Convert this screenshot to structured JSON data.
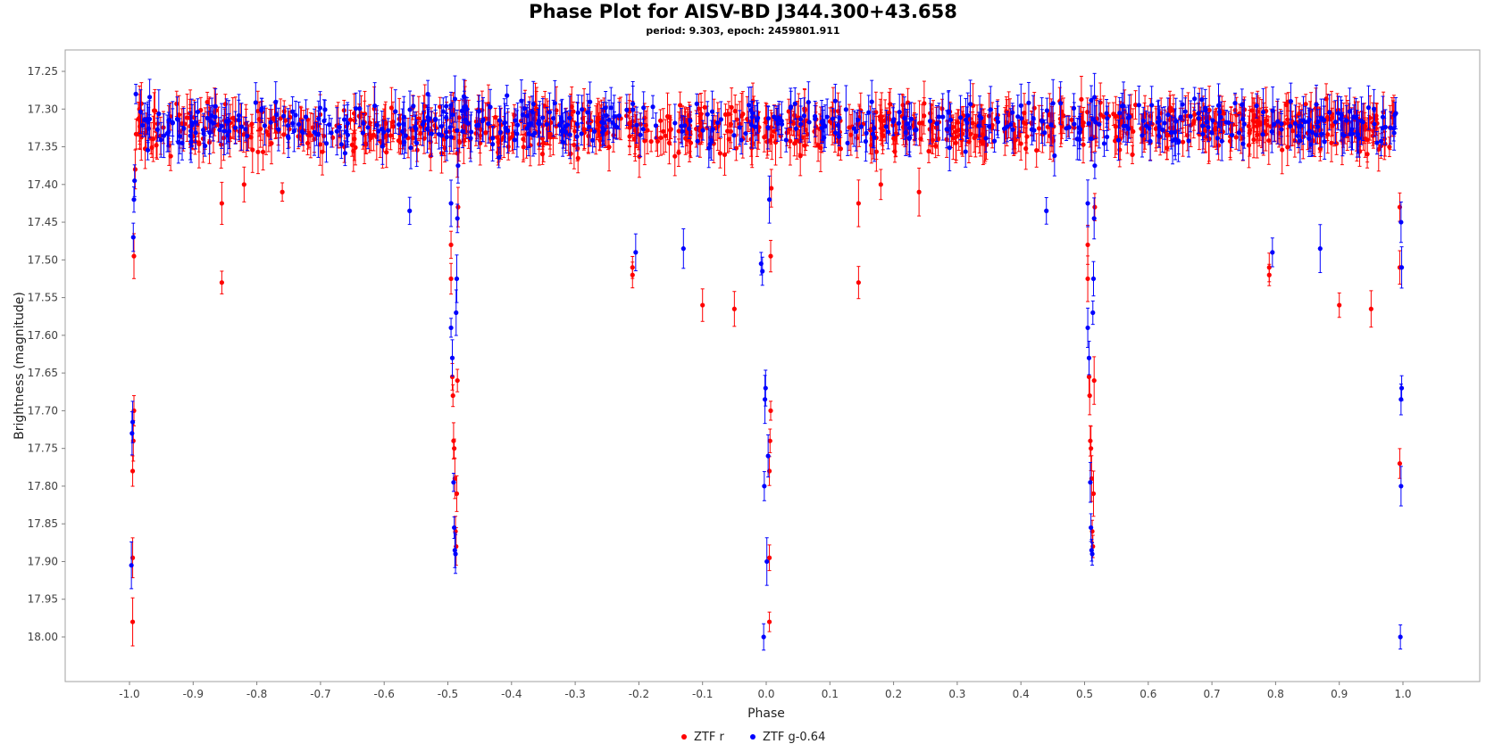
{
  "chart_data": {
    "type": "scatter",
    "title": "Phase Plot for AISV-BD J344.300+43.658",
    "subtitle": "period: 9.303, epoch: 2459801.911",
    "xlabel": "Phase",
    "ylabel": "Brightness (magnitude)",
    "xlim": [
      -1.1,
      1.1
    ],
    "ylim": [
      18.05,
      17.21
    ],
    "y_inverted": true,
    "x_ticks": [
      "-1.0",
      "-0.9",
      "-0.8",
      "-0.7",
      "-0.6",
      "-0.5",
      "-0.4",
      "-0.3",
      "-0.2",
      "-0.1",
      "0.0",
      "0.1",
      "0.2",
      "0.3",
      "0.4",
      "0.5",
      "0.6",
      "0.7",
      "0.8",
      "0.9",
      "1.0"
    ],
    "y_ticks": [
      "17.25",
      "17.30",
      "17.35",
      "17.40",
      "17.45",
      "17.50",
      "17.55",
      "17.60",
      "17.65",
      "17.70",
      "17.75",
      "17.80",
      "17.85",
      "17.90",
      "17.95",
      "18.00"
    ],
    "grid": false,
    "legend_position": "bottom-center",
    "series": [
      {
        "name": "ZTF r",
        "color": "#ff0000",
        "points": [
          [
            -0.995,
            17.98
          ],
          [
            -0.995,
            17.895
          ],
          [
            -0.995,
            17.78
          ],
          [
            -0.994,
            17.74
          ],
          [
            -0.993,
            17.7
          ],
          [
            -0.993,
            17.495
          ],
          [
            -0.991,
            17.38
          ],
          [
            -0.855,
            17.425
          ],
          [
            -0.855,
            17.53
          ],
          [
            -0.82,
            17.4
          ],
          [
            -0.76,
            17.41
          ],
          [
            -0.495,
            17.48
          ],
          [
            -0.495,
            17.525
          ],
          [
            -0.493,
            17.655
          ],
          [
            -0.492,
            17.68
          ],
          [
            -0.491,
            17.74
          ],
          [
            -0.49,
            17.75
          ],
          [
            -0.489,
            17.79
          ],
          [
            -0.488,
            17.86
          ],
          [
            -0.487,
            17.88
          ],
          [
            -0.486,
            17.81
          ],
          [
            -0.485,
            17.66
          ],
          [
            -0.484,
            17.43
          ],
          [
            -0.21,
            17.51
          ],
          [
            -0.21,
            17.52
          ],
          [
            -0.1,
            17.56
          ],
          [
            -0.05,
            17.565
          ],
          [
            0.005,
            17.98
          ],
          [
            0.005,
            17.895
          ],
          [
            0.005,
            17.78
          ],
          [
            0.006,
            17.74
          ],
          [
            0.007,
            17.7
          ],
          [
            0.007,
            17.495
          ],
          [
            0.008,
            17.405
          ],
          [
            0.145,
            17.425
          ],
          [
            0.145,
            17.53
          ],
          [
            0.18,
            17.4
          ],
          [
            0.24,
            17.41
          ],
          [
            0.505,
            17.48
          ],
          [
            0.505,
            17.525
          ],
          [
            0.507,
            17.655
          ],
          [
            0.508,
            17.68
          ],
          [
            0.509,
            17.74
          ],
          [
            0.51,
            17.75
          ],
          [
            0.511,
            17.79
          ],
          [
            0.512,
            17.86
          ],
          [
            0.513,
            17.88
          ],
          [
            0.514,
            17.81
          ],
          [
            0.515,
            17.66
          ],
          [
            0.516,
            17.43
          ],
          [
            0.79,
            17.51
          ],
          [
            0.79,
            17.52
          ],
          [
            0.9,
            17.56
          ],
          [
            0.95,
            17.565
          ],
          [
            0.995,
            17.77
          ],
          [
            0.995,
            17.51
          ],
          [
            0.995,
            17.43
          ]
        ],
        "band": {
          "center": 17.325,
          "spread": 0.04,
          "count": 900,
          "x_range": [
            -0.99,
            0.99
          ]
        }
      },
      {
        "name": "ZTF g-0.64",
        "color": "#0000ff",
        "points": [
          [
            -0.997,
            17.905
          ],
          [
            -0.996,
            17.73
          ],
          [
            -0.995,
            17.715
          ],
          [
            -0.994,
            17.47
          ],
          [
            -0.993,
            17.42
          ],
          [
            -0.992,
            17.395
          ],
          [
            -0.99,
            17.28
          ],
          [
            -0.56,
            17.435
          ],
          [
            -0.495,
            17.59
          ],
          [
            -0.495,
            17.425
          ],
          [
            -0.493,
            17.63
          ],
          [
            -0.491,
            17.795
          ],
          [
            -0.49,
            17.855
          ],
          [
            -0.489,
            17.885
          ],
          [
            -0.488,
            17.89
          ],
          [
            -0.487,
            17.57
          ],
          [
            -0.486,
            17.525
          ],
          [
            -0.485,
            17.445
          ],
          [
            -0.484,
            17.375
          ],
          [
            -0.205,
            17.49
          ],
          [
            -0.13,
            17.485
          ],
          [
            -0.008,
            17.505
          ],
          [
            -0.006,
            17.515
          ],
          [
            -0.004,
            18.0
          ],
          [
            -0.003,
            17.8
          ],
          [
            -0.002,
            17.685
          ],
          [
            -0.001,
            17.67
          ],
          [
            0.001,
            17.9
          ],
          [
            0.003,
            17.76
          ],
          [
            0.005,
            17.42
          ],
          [
            0.44,
            17.435
          ],
          [
            0.505,
            17.59
          ],
          [
            0.505,
            17.425
          ],
          [
            0.507,
            17.63
          ],
          [
            0.509,
            17.795
          ],
          [
            0.51,
            17.855
          ],
          [
            0.511,
            17.885
          ],
          [
            0.512,
            17.89
          ],
          [
            0.513,
            17.57
          ],
          [
            0.514,
            17.525
          ],
          [
            0.515,
            17.445
          ],
          [
            0.516,
            17.375
          ],
          [
            0.795,
            17.49
          ],
          [
            0.87,
            17.485
          ],
          [
            0.996,
            18.0
          ],
          [
            0.997,
            17.8
          ],
          [
            0.997,
            17.685
          ],
          [
            0.998,
            17.67
          ],
          [
            0.998,
            17.51
          ],
          [
            0.997,
            17.45
          ]
        ],
        "band": {
          "center": 17.32,
          "spread": 0.04,
          "count": 520,
          "x_range": [
            -0.99,
            0.99
          ]
        }
      }
    ]
  }
}
